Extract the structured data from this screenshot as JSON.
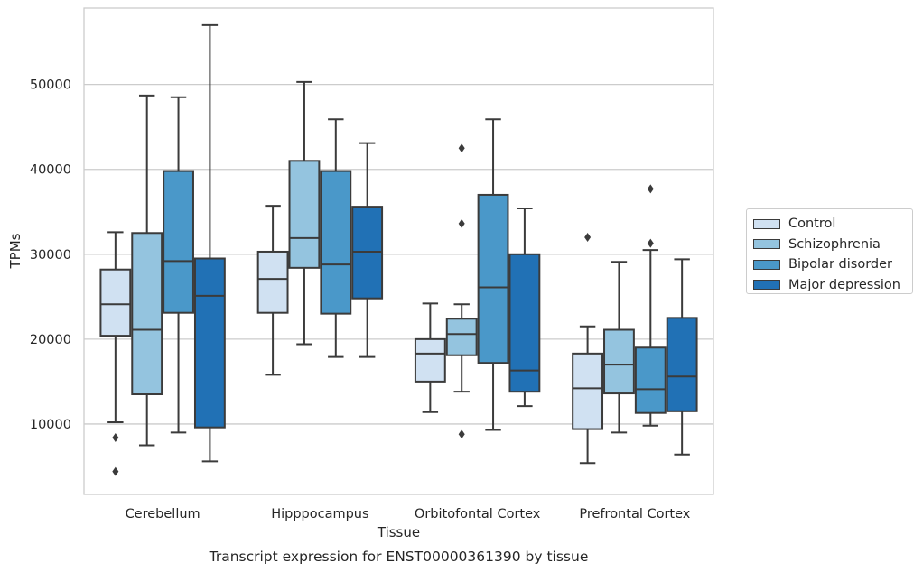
{
  "chart_data": {
    "type": "box",
    "title": "Transcript expression for ENST00000361390 by tissue",
    "xlabel": "Tissue",
    "ylabel": "TPMs",
    "ylim": [
      1700,
      59000
    ],
    "yticks": [
      10000,
      20000,
      30000,
      40000,
      50000
    ],
    "ytick_labels": [
      "10000",
      "20000",
      "30000",
      "40000",
      "50000"
    ],
    "categories": [
      "Cerebellum",
      "Hipppocampus",
      "Orbitofontal Cortex",
      "Prefrontal Cortex"
    ],
    "grid": "horizontal",
    "legend_position": "right",
    "series": [
      {
        "name": "Control",
        "color": "#d0e1f2",
        "boxes": [
          {
            "whislo": 10200,
            "q1": 20400,
            "med": 24100,
            "q3": 28200,
            "whishi": 32600,
            "fliers": [
              8400,
              4400
            ]
          },
          {
            "whislo": 15800,
            "q1": 23100,
            "med": 27100,
            "q3": 30300,
            "whishi": 35700,
            "fliers": []
          },
          {
            "whislo": 11400,
            "q1": 15000,
            "med": 18300,
            "q3": 20000,
            "whishi": 24200,
            "fliers": []
          },
          {
            "whislo": 5400,
            "q1": 9400,
            "med": 14200,
            "q3": 18300,
            "whishi": 21500,
            "fliers": [
              32000
            ]
          }
        ]
      },
      {
        "name": "Schizophrenia",
        "color": "#94c4df",
        "boxes": [
          {
            "whislo": 7500,
            "q1": 13500,
            "med": 21100,
            "q3": 32500,
            "whishi": 48700,
            "fliers": []
          },
          {
            "whislo": 19400,
            "q1": 28400,
            "med": 31900,
            "q3": 41000,
            "whishi": 50300,
            "fliers": []
          },
          {
            "whislo": 13800,
            "q1": 18100,
            "med": 20600,
            "q3": 22400,
            "whishi": 24100,
            "fliers": [
              42500,
              33600,
              8800
            ]
          },
          {
            "whislo": 9000,
            "q1": 13600,
            "med": 17000,
            "q3": 21100,
            "whishi": 29100,
            "fliers": []
          }
        ]
      },
      {
        "name": "Bipolar disorder",
        "color": "#4a98c9",
        "boxes": [
          {
            "whislo": 9000,
            "q1": 23100,
            "med": 29200,
            "q3": 39800,
            "whishi": 48500,
            "fliers": []
          },
          {
            "whislo": 17900,
            "q1": 23000,
            "med": 28800,
            "q3": 39800,
            "whishi": 45900,
            "fliers": []
          },
          {
            "whislo": 9300,
            "q1": 17200,
            "med": 26100,
            "q3": 37000,
            "whishi": 45900,
            "fliers": []
          },
          {
            "whislo": 9800,
            "q1": 11300,
            "med": 14100,
            "q3": 19000,
            "whishi": 30500,
            "fliers": [
              37700,
              31300
            ]
          }
        ]
      },
      {
        "name": "Major depression",
        "color": "#2171b5",
        "boxes": [
          {
            "whislo": 5600,
            "q1": 9600,
            "med": 25100,
            "q3": 29500,
            "whishi": 57000,
            "fliers": []
          },
          {
            "whislo": 17900,
            "q1": 24800,
            "med": 30300,
            "q3": 35600,
            "whishi": 43100,
            "fliers": []
          },
          {
            "whislo": 12100,
            "q1": 13800,
            "med": 16300,
            "q3": 30000,
            "whishi": 35400,
            "fliers": []
          },
          {
            "whislo": 6400,
            "q1": 11500,
            "med": 15600,
            "q3": 22500,
            "whishi": 29400,
            "fliers": []
          }
        ]
      }
    ]
  }
}
